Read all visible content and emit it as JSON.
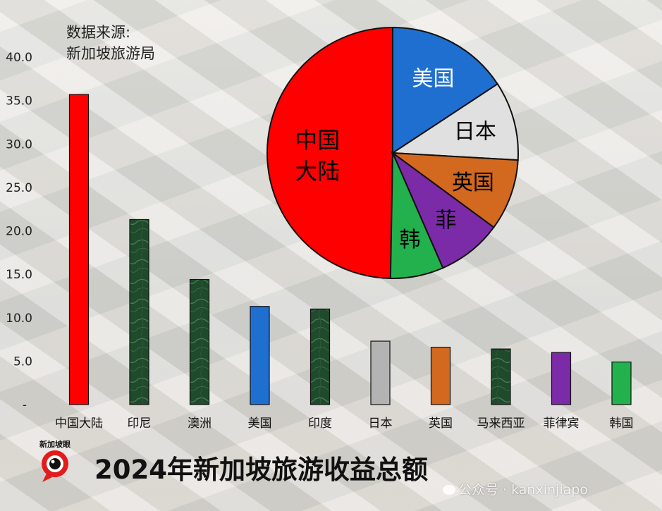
{
  "source": {
    "line1": "数据来源:",
    "line2": "新加坡旅游局"
  },
  "title": "2024年新加坡旅游收益总额",
  "logo_text": "新加坡眼",
  "watermark": "公众号 · kanxinjiapo",
  "colors": {
    "red": "#ff0000",
    "dark_green": "#1f4a2c",
    "blue": "#1f6fd0",
    "gray": "#b3b3b3",
    "orange": "#d2691e",
    "purple": "#7b2aa8",
    "green": "#22b14c",
    "light_gray": "#e0e0e0"
  },
  "chart_data": [
    {
      "type": "bar",
      "categories": [
        "中国大陆",
        "印尼",
        "澳洲",
        "美国",
        "印度",
        "日本",
        "英国",
        "马来西亚",
        "菲律宾",
        "韩国"
      ],
      "values": [
        35.7,
        21.3,
        14.4,
        11.3,
        11.0,
        7.3,
        6.6,
        6.4,
        6.0,
        4.9
      ],
      "bar_colors": [
        "#ff0000",
        "#1f4a2c",
        "#1f4a2c",
        "#1f6fd0",
        "#1f4a2c",
        "#b3b3b3",
        "#d2691e",
        "#1f4a2c",
        "#7b2aa8",
        "#22b14c"
      ],
      "yticks": [
        "-",
        "5.0",
        "10.0",
        "15.0",
        "20.0",
        "25.0",
        "30.0",
        "35.0",
        "40.0"
      ],
      "ylim": [
        0,
        40
      ]
    },
    {
      "type": "pie",
      "labels": [
        "中国大陆",
        "美国",
        "日本",
        "英国",
        "菲",
        "韩"
      ],
      "values": [
        35.7,
        11.3,
        7.3,
        6.6,
        6.0,
        4.9
      ],
      "colors": [
        "#ff0000",
        "#1f6fd0",
        "#e0e0e0",
        "#d2691e",
        "#7b2aa8",
        "#22b14c"
      ],
      "label_colors": [
        "#000000",
        "#ffffff",
        "#000000",
        "#000000",
        "#000000",
        "#000000"
      ]
    }
  ]
}
